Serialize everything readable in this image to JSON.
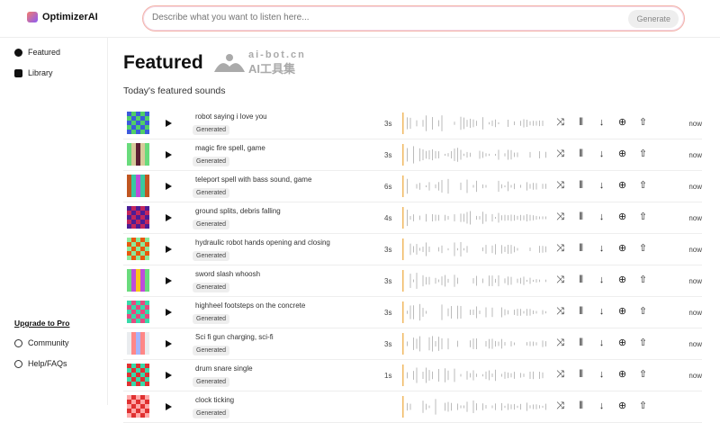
{
  "app": {
    "name": "OptimizerAI"
  },
  "search": {
    "placeholder": "Describe what you want to listen here...",
    "button": "Generate"
  },
  "sidebar": {
    "items": [
      {
        "label": "Featured",
        "icon": "disc-icon"
      },
      {
        "label": "Library",
        "icon": "library-icon"
      }
    ],
    "upgrade": "Upgrade to Pro",
    "bottom": [
      {
        "label": "Community",
        "icon": "globe-icon"
      },
      {
        "label": "Help/FAQs",
        "icon": "help-icon"
      }
    ]
  },
  "page": {
    "title": "Featured",
    "subtitle": "Today's featured sounds",
    "watermark": {
      "line1": "ai-bot.cn",
      "line2": "AI工具集"
    }
  },
  "colors": {
    "accent": "#f0b860",
    "wave": "#bbbbbb"
  },
  "actions": [
    "shuffle-icon",
    "waveform-edit-icon",
    "download-icon",
    "upload-icon",
    "share-icon"
  ],
  "sounds": [
    {
      "title": "robot saying i love you",
      "badge": "Generated",
      "duration": "3s",
      "time": "now",
      "colors": [
        "#3b5bdb",
        "#51cf66"
      ]
    },
    {
      "title": "magic fire spell, game",
      "badge": "Generated",
      "duration": "3s",
      "time": "now",
      "colors": [
        "#5c1f33",
        "#69db7c",
        "#d8c99b"
      ]
    },
    {
      "title": "teleport spell with bass sound, game",
      "badge": "Generated",
      "duration": "6s",
      "time": "now",
      "colors": [
        "#38c9a0",
        "#be4bdb",
        "#c05621"
      ]
    },
    {
      "title": "ground splits, debris falling",
      "badge": "Generated",
      "duration": "4s",
      "time": "now",
      "colors": [
        "#c2255c",
        "#4c1d95"
      ]
    },
    {
      "title": "hydraulic robot hands opening and closing",
      "badge": "Generated",
      "duration": "3s",
      "time": "now",
      "colors": [
        "#8ce99a",
        "#e8590c"
      ]
    },
    {
      "title": "sword slash whoosh",
      "badge": "Generated",
      "duration": "3s",
      "time": "now",
      "colors": [
        "#be4bdb",
        "#fcc419",
        "#69db7c"
      ]
    },
    {
      "title": "highheel footsteps on the concrete",
      "badge": "Generated",
      "duration": "3s",
      "time": "now",
      "colors": [
        "#38d9a9",
        "#e64980"
      ]
    },
    {
      "title": "Sci fi gun charging, sci-fi",
      "badge": "Generated",
      "duration": "3s",
      "time": "now",
      "colors": [
        "#a5b4fc",
        "#e9ecef",
        "#ff8787"
      ]
    },
    {
      "title": "drum snare single",
      "badge": "Generated",
      "duration": "1s",
      "time": "now",
      "colors": [
        "#e03131",
        "#38d9a9"
      ]
    },
    {
      "title": "clock ticking",
      "badge": "Generated",
      "duration": "",
      "time": "",
      "colors": [
        "#e03131",
        "#ffa8a8"
      ]
    }
  ]
}
